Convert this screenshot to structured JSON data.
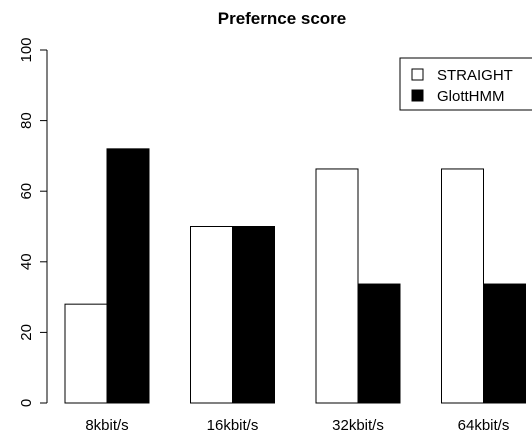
{
  "chart_data": {
    "type": "bar",
    "title": "Prefernce score",
    "xlabel": "",
    "ylabel": "",
    "ylim": [
      0,
      100
    ],
    "yticks": [
      0,
      20,
      40,
      60,
      80,
      100
    ],
    "categories": [
      "8kbit/s",
      "16kbit/s",
      "32kbit/s",
      "64kbit/s"
    ],
    "series": [
      {
        "name": "STRAIGHT",
        "values": [
          28,
          50,
          66.3,
          66.3
        ],
        "color": "#ffffff"
      },
      {
        "name": "GlottHMM",
        "values": [
          72,
          50,
          33.7,
          33.7
        ],
        "color": "#000000"
      }
    ],
    "legend_position": "top-right",
    "grid": false
  }
}
